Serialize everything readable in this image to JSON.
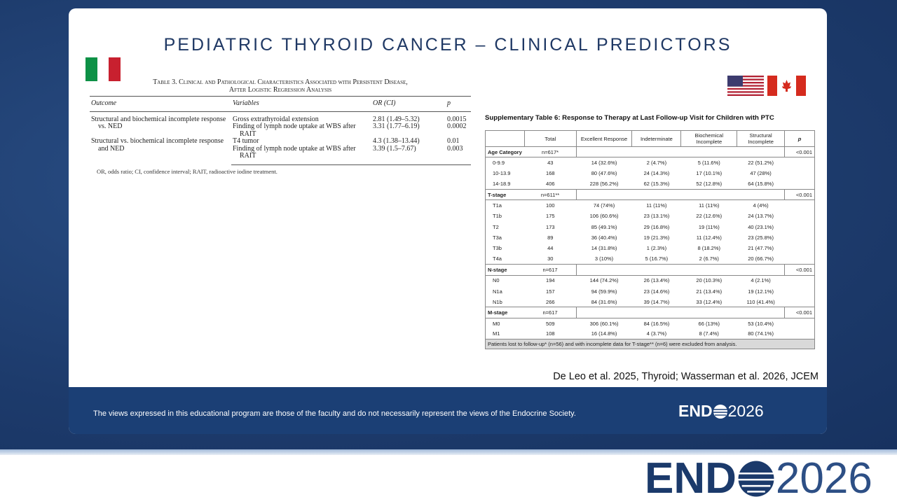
{
  "slide": {
    "title": "PEDIATRIC THYROID CANCER – CLINICAL PREDICTORS",
    "citation": "De Leo et al. 2025, Thyroid; Wasserman et al. 2026, JCEM",
    "disclaimer": "The views expressed in this educational program are those of the faculty and do not necessarily represent the views of the Endocrine Society."
  },
  "table3": {
    "caption": [
      "Table 3. Clinical and Pathological Characteristics Associated with Persistent Disease,",
      "After Logistic Regression Analysis"
    ],
    "headers": [
      "Outcome",
      "Variables",
      "OR (CI)",
      "p"
    ],
    "groups": [
      {
        "outcome": "Structural and biochemical incomplete response vs. NED",
        "rows": [
          {
            "variable": "Gross extrathyroidal extension",
            "or": "2.81 (1.49–5.32)",
            "p": "0.0015"
          },
          {
            "variable": "Finding of lymph node uptake at WBS after RAIT",
            "or": "3.31 (1.77–6.19)",
            "p": "0.0002"
          }
        ]
      },
      {
        "outcome": "Structural vs. biochemical incomplete response and NED",
        "rows": [
          {
            "variable": "T4 tumor",
            "or": "4.3 (1.38–13.44)",
            "p": "0.01"
          },
          {
            "variable": "Finding of lymph node uptake at WBS after RAIT",
            "or": "3.39 (1.5–7.67)",
            "p": "0.003"
          }
        ]
      }
    ],
    "footnote": "OR, odds ratio; CI, confidence interval; RAIT, radioactive iodine treatment."
  },
  "supplementary": {
    "title": "Supplementary Table 6: Response to Therapy at Last Follow-up Visit for Children with PTC",
    "headers": [
      "Total",
      "Excellent Response",
      "Indeterminate",
      "Biochemical Incomplete",
      "Structural Incomplete",
      "p"
    ],
    "sections": [
      {
        "name": "Age Category",
        "n": "n=617*",
        "p": "<0.001",
        "rows": [
          [
            "0-9.9",
            "43",
            "14 (32.6%)",
            "2 (4.7%)",
            "5 (11.6%)",
            "22 (51.2%)"
          ],
          [
            "10-13.9",
            "168",
            "80 (47.6%)",
            "24 (14.3%)",
            "17 (10.1%)",
            "47 (28%)"
          ],
          [
            "14-18.9",
            "406",
            "228 (56.2%)",
            "62 (15.3%)",
            "52 (12.8%)",
            "64 (15.8%)"
          ]
        ]
      },
      {
        "name": "T-stage",
        "n": "n=611**",
        "p": "<0.001",
        "rows": [
          [
            "T1a",
            "100",
            "74 (74%)",
            "11 (11%)",
            "11 (11%)",
            "4 (4%)"
          ],
          [
            "T1b",
            "175",
            "106 (60.6%)",
            "23 (13.1%)",
            "22 (12.6%)",
            "24 (13.7%)"
          ],
          [
            "T2",
            "173",
            "85 (49.1%)",
            "29 (16.8%)",
            "19 (11%)",
            "40 (23.1%)"
          ],
          [
            "T3a",
            "89",
            "36 (40.4%)",
            "19 (21.3%)",
            "11 (12.4%)",
            "23 (25.8%)"
          ],
          [
            "T3b",
            "44",
            "14 (31.8%)",
            "1 (2.3%)",
            "8 (18.2%)",
            "21 (47.7%)"
          ],
          [
            "T4a",
            "30",
            "3 (10%)",
            "5 (16.7%)",
            "2 (6.7%)",
            "20 (66.7%)"
          ]
        ]
      },
      {
        "name": "N-stage",
        "n": "n=617",
        "p": "<0.001",
        "rows": [
          [
            "N0",
            "194",
            "144 (74.2%)",
            "26 (13.4%)",
            "20 (10.3%)",
            "4 (2.1%)"
          ],
          [
            "N1a",
            "157",
            "94 (59.9%)",
            "23 (14.6%)",
            "21 (13.4%)",
            "19 (12.1%)"
          ],
          [
            "N1b",
            "266",
            "84 (31.6%)",
            "39 (14.7%)",
            "33 (12.4%)",
            "110 (41.4%)"
          ]
        ]
      },
      {
        "name": "M-stage",
        "n": "n=617",
        "p": "<0.001",
        "rows": [
          [
            "M0",
            "509",
            "306 (60.1%)",
            "84 (16.5%)",
            "66 (13%)",
            "53 (10.4%)"
          ],
          [
            "M1",
            "108",
            "16 (14.8%)",
            "4 (3.7%)",
            "8 (7.4%)",
            "80 (74.1%)"
          ]
        ]
      }
    ],
    "footnote": "Patients lost to follow-up* (n=56) and with incomplete data for T-stage** (n=6) were excluded from analysis."
  },
  "brand": {
    "name": "END",
    "year": "2026"
  }
}
